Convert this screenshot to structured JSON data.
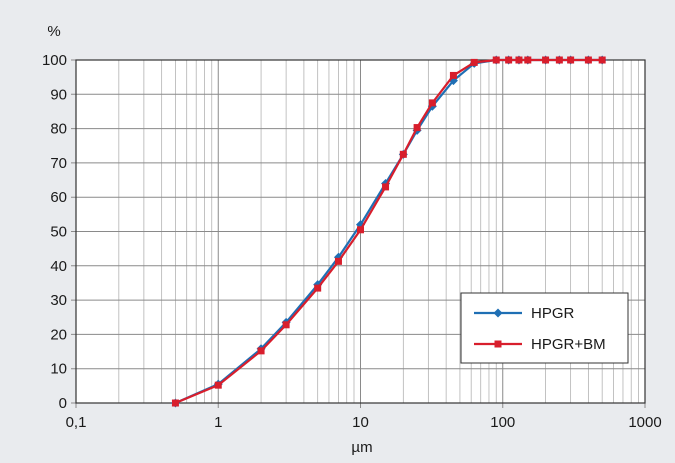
{
  "chart_data": {
    "type": "line",
    "xscale": "log",
    "xlim": [
      0.1,
      1000
    ],
    "ylim": [
      0,
      100
    ],
    "xlabel": "µm",
    "ylabel": "%",
    "grid": true,
    "legend_position": "bottom-right",
    "x_ticks": [
      0.1,
      1,
      10,
      100,
      1000
    ],
    "x_tick_labels": [
      "0,1",
      "1",
      "10",
      "100",
      "1000"
    ],
    "y_ticks": [
      0,
      10,
      20,
      30,
      40,
      50,
      60,
      70,
      80,
      90,
      100
    ],
    "y_tick_labels": [
      "0",
      "10",
      "20",
      "30",
      "40",
      "50",
      "60",
      "70",
      "80",
      "90",
      "100"
    ],
    "series": [
      {
        "name": "HPGR",
        "color": "#1f6fb4",
        "marker": "diamond",
        "points": [
          [
            0.5,
            0
          ],
          [
            1,
            5.5
          ],
          [
            2,
            15.8
          ],
          [
            3,
            23.5
          ],
          [
            5,
            34.5
          ],
          [
            7,
            42.5
          ],
          [
            10,
            52
          ],
          [
            15,
            64
          ],
          [
            20,
            72.5
          ],
          [
            25,
            79.5
          ],
          [
            32,
            86.5
          ],
          [
            45,
            94
          ],
          [
            63,
            99
          ],
          [
            90,
            100
          ],
          [
            110,
            100
          ],
          [
            130,
            100
          ],
          [
            150,
            100
          ],
          [
            200,
            100
          ],
          [
            250,
            100
          ],
          [
            300,
            100
          ],
          [
            400,
            100
          ],
          [
            500,
            100
          ]
        ]
      },
      {
        "name": "HPGR+BM",
        "color": "#d81e2c",
        "marker": "square",
        "points": [
          [
            0.5,
            0
          ],
          [
            1,
            5.2
          ],
          [
            2,
            15.2
          ],
          [
            3,
            22.8
          ],
          [
            5,
            33.5
          ],
          [
            7,
            41.3
          ],
          [
            10,
            50.5
          ],
          [
            15,
            63
          ],
          [
            20,
            72.5
          ],
          [
            25,
            80.3
          ],
          [
            32,
            87.5
          ],
          [
            45,
            95.5
          ],
          [
            63,
            99.3
          ],
          [
            90,
            100
          ],
          [
            110,
            100
          ],
          [
            130,
            100
          ],
          [
            150,
            100
          ],
          [
            200,
            100
          ],
          [
            250,
            100
          ],
          [
            300,
            100
          ],
          [
            400,
            100
          ],
          [
            500,
            100
          ]
        ]
      }
    ]
  }
}
